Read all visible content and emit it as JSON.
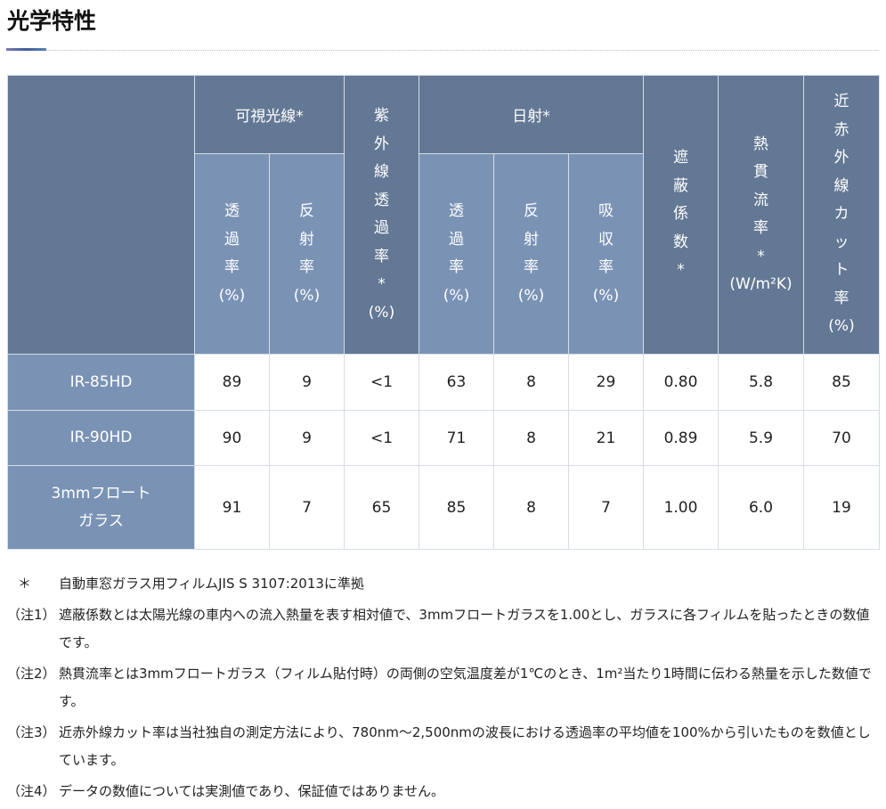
{
  "title": "光学特性",
  "headers": {
    "visible": "可視光線*",
    "uv": [
      "紫",
      "外",
      "線",
      "透",
      "過",
      "率",
      "*",
      "(%)"
    ],
    "solar": "日射*",
    "shading": [
      "遮",
      "蔽",
      "係",
      "数",
      "*"
    ],
    "heat": [
      "熱",
      "貫",
      "流",
      "率",
      "*",
      "(W/m²K)"
    ],
    "nir": [
      "近",
      "赤",
      "外",
      "線",
      "カ",
      "ッ",
      "ト",
      "率",
      "(%)"
    ],
    "trans": [
      "透",
      "過",
      "率",
      "(%)"
    ],
    "refl": [
      "反",
      "射",
      "率",
      "(%)"
    ],
    "abs": [
      "吸",
      "収",
      "率",
      "(%)"
    ]
  },
  "rows": [
    {
      "name": [
        "IR-85HD"
      ],
      "values": [
        "89",
        "9",
        "<1",
        "63",
        "8",
        "29",
        "0.80",
        "5.8",
        "85"
      ]
    },
    {
      "name": [
        "IR-90HD"
      ],
      "values": [
        "90",
        "9",
        "<1",
        "71",
        "8",
        "21",
        "0.89",
        "5.9",
        "70"
      ]
    },
    {
      "name": [
        "3mmフロート",
        "ガラス"
      ],
      "values": [
        "91",
        "7",
        "65",
        "85",
        "8",
        "7",
        "1.00",
        "6.0",
        "19"
      ]
    }
  ],
  "notes": [
    {
      "mark": "＊",
      "text": "自動車窓ガラス用フィルムJIS S 3107:2013に準拠"
    },
    {
      "mark": "（注1）",
      "text": "遮蔽係数とは太陽光線の車内への流入熱量を表す相対値で、3mmフロートガラスを1.00とし、ガラスに各フィルムを貼ったときの数値です。"
    },
    {
      "mark": "（注2）",
      "text": "熱貫流率とは3mmフロートガラス（フィルム貼付時）の両側の空気温度差が1℃のとき、1m²当たり1時間に伝わる熱量を示した数値です。"
    },
    {
      "mark": "（注3）",
      "text": "近赤外線カット率は当社独自の測定方法により、780nm～2,500nmの波長における透過率の平均値を100%から引いたものを数値としています。"
    },
    {
      "mark": "（注4）",
      "text": "データの数値については実測値であり、保証値ではありません。"
    }
  ]
}
